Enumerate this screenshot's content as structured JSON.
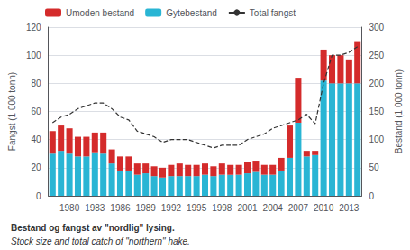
{
  "chart_data": {
    "type": "bar",
    "categories": [
      null,
      null,
      "1980",
      null,
      null,
      "1983",
      null,
      null,
      "1986",
      null,
      null,
      "1989",
      null,
      null,
      "1992",
      null,
      null,
      "1995",
      null,
      null,
      "1998",
      null,
      null,
      "2001",
      null,
      null,
      "2004",
      null,
      null,
      "2007",
      null,
      null,
      "2010",
      null,
      null,
      "2013",
      null
    ],
    "series": [
      {
        "name": "Gytebestand",
        "type": "bar",
        "color": "#29b5d4",
        "values": [
          30,
          32,
          30,
          28,
          28,
          31,
          30,
          23,
          18,
          18,
          15,
          16,
          14,
          13,
          14,
          14,
          14,
          14,
          15,
          14,
          15,
          15,
          15,
          16,
          17,
          15,
          15,
          18,
          27,
          52,
          28,
          29,
          82,
          80,
          80,
          80,
          80
        ]
      },
      {
        "name": "Umoden bestand",
        "type": "bar",
        "color": "#d42b2b",
        "values": [
          16,
          18,
          18,
          14,
          14,
          14,
          15,
          10,
          10,
          10,
          8,
          7,
          7,
          7,
          8,
          9,
          8,
          8,
          8,
          7,
          8,
          7,
          7,
          8,
          8,
          7,
          7,
          9,
          23,
          32,
          4,
          3,
          22,
          20,
          20,
          17,
          30
        ]
      },
      {
        "name": "Total fangst",
        "type": "line",
        "axis": "y2",
        "color": "#333333",
        "line_style": "dashed",
        "values": [
          130,
          140,
          145,
          155,
          160,
          165,
          165,
          155,
          140,
          135,
          115,
          110,
          105,
          95,
          100,
          100,
          100,
          95,
          90,
          85,
          90,
          90,
          90,
          100,
          105,
          110,
          120,
          125,
          130,
          135,
          145,
          128,
          200,
          250,
          250,
          255,
          265
        ]
      }
    ],
    "stacked": true,
    "ylabel": "Fangst (1 000 tonn)",
    "y2label": "Bestand (1 000 tonn)",
    "ylim": [
      0,
      120
    ],
    "yticks": [
      0,
      20,
      40,
      60,
      80,
      100,
      120
    ],
    "y2lim": [
      0,
      300
    ],
    "y2ticks": [
      0,
      50,
      100,
      150,
      200,
      250,
      300
    ],
    "grid": true,
    "legend": "upper left",
    "annotations": [
      "Bestand og fangst av \"nordlig\" lysing.",
      "Stock size and total catch of \"northern\" hake."
    ]
  }
}
